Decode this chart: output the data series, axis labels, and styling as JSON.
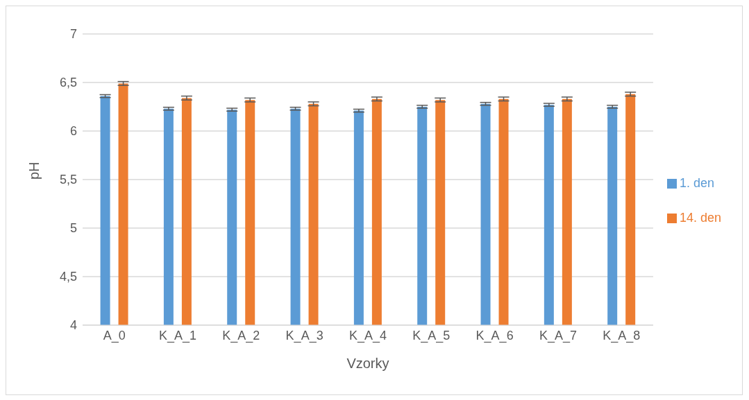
{
  "chart_data": {
    "type": "bar",
    "xlabel": "Vzorky",
    "ylabel": "pH",
    "categories": [
      "A_0",
      "K_A_1",
      "K_A_2",
      "K_A_3",
      "K_A_4",
      "K_A_5",
      "K_A_6",
      "K_A_7",
      "K_A_8"
    ],
    "series": [
      {
        "name": "1. den",
        "color": "#5b9bd5",
        "values": [
          6.36,
          6.23,
          6.22,
          6.23,
          6.21,
          6.25,
          6.28,
          6.27,
          6.25
        ],
        "errors": [
          0.015,
          0.015,
          0.015,
          0.015,
          0.015,
          0.015,
          0.015,
          0.015,
          0.015
        ]
      },
      {
        "name": "14. den",
        "color": "#ed7d31",
        "values": [
          6.49,
          6.34,
          6.32,
          6.28,
          6.33,
          6.32,
          6.33,
          6.33,
          6.38
        ],
        "errors": [
          0.02,
          0.02,
          0.02,
          0.02,
          0.02,
          0.02,
          0.02,
          0.02,
          0.02
        ]
      }
    ],
    "ylim": [
      4,
      7
    ],
    "yticks": [
      4,
      {
        "value": 4.5,
        "label": "4,5"
      },
      5,
      {
        "value": 5.5,
        "label": "5,5"
      },
      6,
      {
        "value": 6.5,
        "label": "6,5"
      },
      7
    ],
    "grid": "y",
    "legend": "right"
  }
}
